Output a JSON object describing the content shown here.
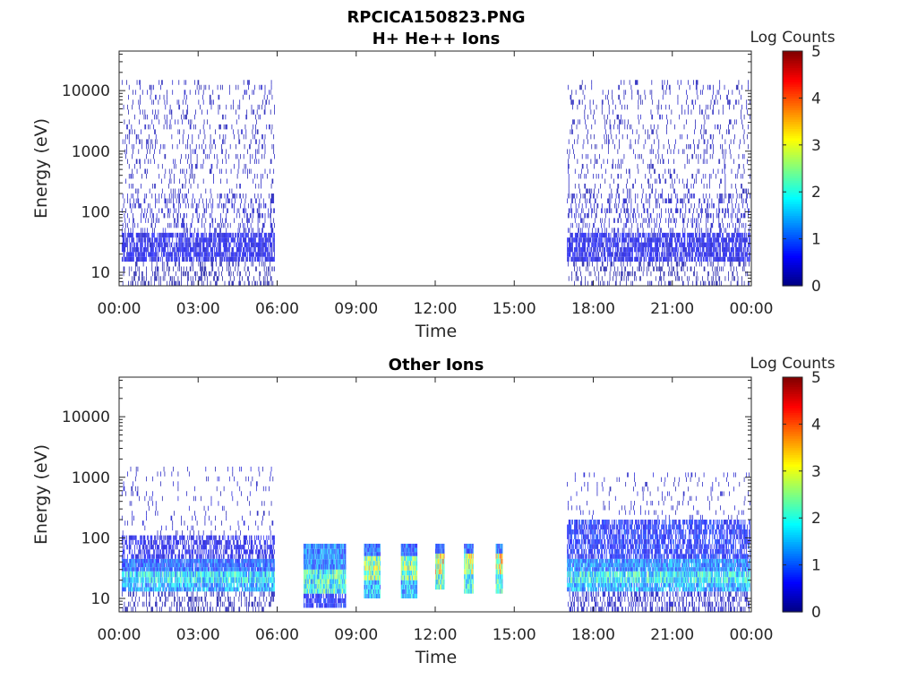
{
  "figure": {
    "title_line1": "RPCICA150823.PNG",
    "colors": {
      "text": "#262626",
      "axis": "#262626",
      "background": "#ffffff"
    }
  },
  "chart_data": [
    {
      "type": "heatmap",
      "title": "H+ He++ Ions",
      "xlabel": "Time",
      "ylabel": "Energy (eV)",
      "x_ticks": [
        "00:00",
        "03:00",
        "06:00",
        "09:00",
        "12:00",
        "15:00",
        "18:00",
        "21:00",
        "00:00"
      ],
      "x_range_hours": [
        0,
        24
      ],
      "y_ticks": [
        "10",
        "100",
        "1000",
        "10000"
      ],
      "y_scale": "log",
      "y_range": [
        6,
        45000
      ],
      "colorbar": {
        "title": "Log Counts",
        "ticks": [
          "0",
          "1",
          "2",
          "3",
          "4",
          "5"
        ],
        "range": [
          0,
          5
        ],
        "colormap": "jet"
      },
      "data_intervals_hours": [
        [
          0.1,
          5.9
        ],
        [
          17.0,
          23.95
        ]
      ],
      "segments": [
        {
          "start": 0.1,
          "end": 5.9,
          "bands": [
            {
              "emin": 6,
              "emax": 15,
              "level": 0.15,
              "density": 0.25
            },
            {
              "emin": 15,
              "emax": 45,
              "level": 0.5,
              "density": 0.75
            },
            {
              "emin": 45,
              "emax": 200,
              "level": 0.3,
              "density": 0.25
            },
            {
              "emin": 200,
              "emax": 15000,
              "level": 0.25,
              "density": 0.12
            }
          ]
        },
        {
          "start": 17.0,
          "end": 23.95,
          "bands": [
            {
              "emin": 6,
              "emax": 15,
              "level": 0.15,
              "density": 0.25
            },
            {
              "emin": 15,
              "emax": 45,
              "level": 0.5,
              "density": 0.75
            },
            {
              "emin": 45,
              "emax": 200,
              "level": 0.3,
              "density": 0.25
            },
            {
              "emin": 200,
              "emax": 15000,
              "level": 0.25,
              "density": 0.12
            }
          ]
        }
      ]
    },
    {
      "type": "heatmap",
      "title": "Other Ions",
      "xlabel": "Time",
      "ylabel": "Energy (eV)",
      "x_ticks": [
        "00:00",
        "03:00",
        "06:00",
        "09:00",
        "12:00",
        "15:00",
        "18:00",
        "21:00",
        "00:00"
      ],
      "x_range_hours": [
        0,
        24
      ],
      "y_ticks": [
        "10",
        "100",
        "1000",
        "10000"
      ],
      "y_scale": "log",
      "y_range": [
        6,
        45000
      ],
      "colorbar": {
        "title": "Log Counts",
        "ticks": [
          "0",
          "1",
          "2",
          "3",
          "4",
          "5"
        ],
        "range": [
          0,
          5
        ],
        "colormap": "jet"
      },
      "segments": [
        {
          "start": 0.1,
          "end": 5.9,
          "bands": [
            {
              "emin": 6,
              "emax": 13,
              "level": 0.2,
              "density": 0.3
            },
            {
              "emin": 13,
              "emax": 18,
              "level": 1.4,
              "density": 0.9
            },
            {
              "emin": 18,
              "emax": 28,
              "level": 1.7,
              "density": 0.95
            },
            {
              "emin": 28,
              "emax": 45,
              "level": 1.0,
              "density": 0.95
            },
            {
              "emin": 45,
              "emax": 110,
              "level": 0.5,
              "density": 0.6
            },
            {
              "emin": 110,
              "emax": 1500,
              "level": 0.3,
              "density": 0.06
            }
          ]
        },
        {
          "start": 7.0,
          "end": 8.6,
          "bands": [
            {
              "emin": 7,
              "emax": 12,
              "level": 0.7,
              "density": 0.8
            },
            {
              "emin": 12,
              "emax": 30,
              "level": 2.0,
              "density": 1.0
            },
            {
              "emin": 30,
              "emax": 80,
              "level": 1.2,
              "density": 1.0
            }
          ]
        },
        {
          "start": 9.3,
          "end": 9.9,
          "bands": [
            {
              "emin": 10,
              "emax": 20,
              "level": 1.5,
              "density": 1.0
            },
            {
              "emin": 20,
              "emax": 50,
              "level": 2.6,
              "density": 1.0
            },
            {
              "emin": 50,
              "emax": 80,
              "level": 1.0,
              "density": 1.0
            }
          ]
        },
        {
          "start": 10.7,
          "end": 11.3,
          "bands": [
            {
              "emin": 10,
              "emax": 20,
              "level": 1.5,
              "density": 1.0
            },
            {
              "emin": 20,
              "emax": 50,
              "level": 2.3,
              "density": 1.0
            },
            {
              "emin": 50,
              "emax": 80,
              "level": 1.0,
              "density": 1.0
            }
          ]
        },
        {
          "start": 12.0,
          "end": 12.35,
          "bands": [
            {
              "emin": 14,
              "emax": 25,
              "level": 2.0,
              "density": 1.0
            },
            {
              "emin": 25,
              "emax": 55,
              "level": 2.8,
              "density": 1.0
            },
            {
              "emin": 55,
              "emax": 80,
              "level": 1.0,
              "density": 1.0
            }
          ]
        },
        {
          "start": 13.1,
          "end": 13.45,
          "bands": [
            {
              "emin": 12,
              "emax": 25,
              "level": 1.8,
              "density": 1.0
            },
            {
              "emin": 25,
              "emax": 55,
              "level": 2.7,
              "density": 1.0
            },
            {
              "emin": 55,
              "emax": 80,
              "level": 1.0,
              "density": 1.0
            }
          ]
        },
        {
          "start": 14.3,
          "end": 14.55,
          "bands": [
            {
              "emin": 12,
              "emax": 25,
              "level": 2.0,
              "density": 1.0
            },
            {
              "emin": 25,
              "emax": 55,
              "level": 3.0,
              "density": 1.0
            },
            {
              "emin": 55,
              "emax": 80,
              "level": 1.0,
              "density": 1.0
            }
          ]
        },
        {
          "start": 17.0,
          "end": 23.95,
          "bands": [
            {
              "emin": 6,
              "emax": 13,
              "level": 0.3,
              "density": 0.4
            },
            {
              "emin": 13,
              "emax": 18,
              "level": 1.4,
              "density": 0.9
            },
            {
              "emin": 18,
              "emax": 28,
              "level": 1.8,
              "density": 0.95
            },
            {
              "emin": 28,
              "emax": 45,
              "level": 1.2,
              "density": 0.95
            },
            {
              "emin": 45,
              "emax": 200,
              "level": 0.7,
              "density": 0.7
            },
            {
              "emin": 200,
              "emax": 1200,
              "level": 0.3,
              "density": 0.07
            }
          ]
        }
      ]
    }
  ]
}
